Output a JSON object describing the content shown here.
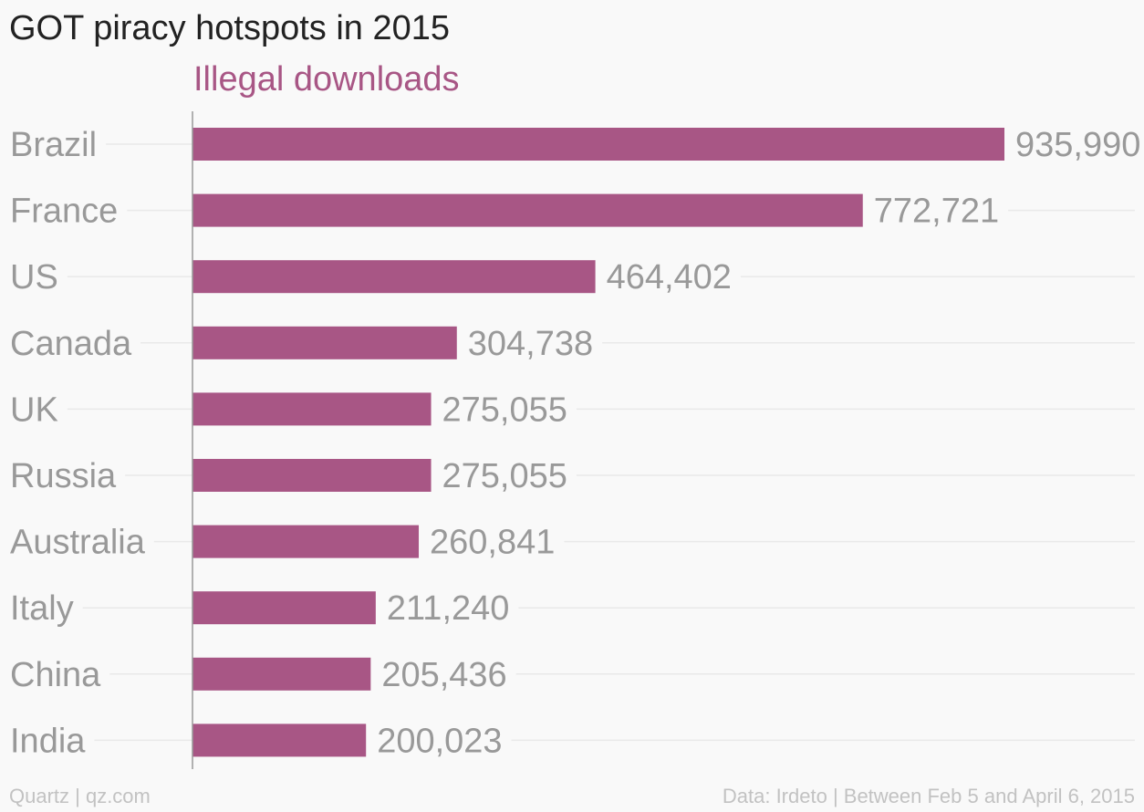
{
  "chart_data": {
    "type": "bar",
    "orientation": "horizontal",
    "title": "GOT piracy hotspots in 2015",
    "series_label": "Illegal downloads",
    "categories": [
      "Brazil",
      "France",
      "US",
      "Canada",
      "UK",
      "Russia",
      "Australia",
      "Italy",
      "China",
      "India"
    ],
    "values": [
      935990,
      772721,
      464402,
      304738,
      275055,
      275055,
      260841,
      211240,
      205436,
      200023
    ],
    "value_labels": [
      "935,990",
      "772,721",
      "464,402",
      "304,738",
      "275,055",
      "275,055",
      "260,841",
      "211,240",
      "205,436",
      "200,023"
    ],
    "xlim": [
      0,
      935990
    ],
    "grid": true,
    "legend": "none"
  },
  "colors": {
    "bar": "#a85685",
    "series_label": "#a85685",
    "category_label": "#999999",
    "value_label": "#999999",
    "gridline": "#e9e9e9",
    "axis": "#999999"
  },
  "footer": {
    "source_left": "Quartz | qz.com",
    "source_right": "Data: Irdeto | Between Feb 5 and April 6, 2015"
  }
}
